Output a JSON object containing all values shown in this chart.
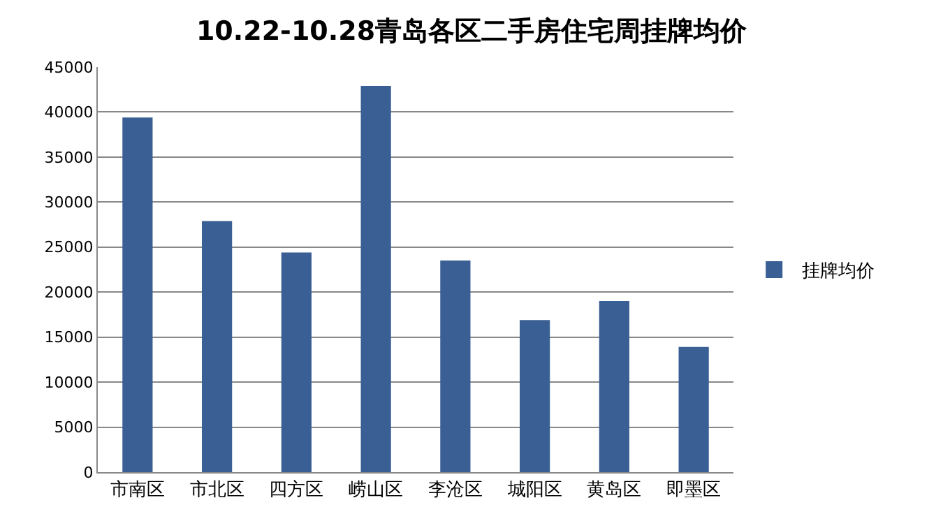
{
  "chart_data": {
    "type": "bar",
    "title": "10.22-10.28青岛各区二手房住宅周挂牌均价",
    "categories": [
      "市南区",
      "市北区",
      "四方区",
      "崂山区",
      "李沧区",
      "城阳区",
      "黄岛区",
      "即墨区"
    ],
    "series": [
      {
        "name": "挂牌均价",
        "color": "#3a5f94",
        "values": [
          39400,
          27900,
          24400,
          42900,
          23500,
          16900,
          19000,
          13900
        ]
      }
    ],
    "ylim": [
      0,
      45000
    ],
    "yticks": [
      0,
      5000,
      10000,
      15000,
      20000,
      25000,
      30000,
      35000,
      40000,
      45000
    ],
    "grid": "y",
    "legend": "right"
  }
}
